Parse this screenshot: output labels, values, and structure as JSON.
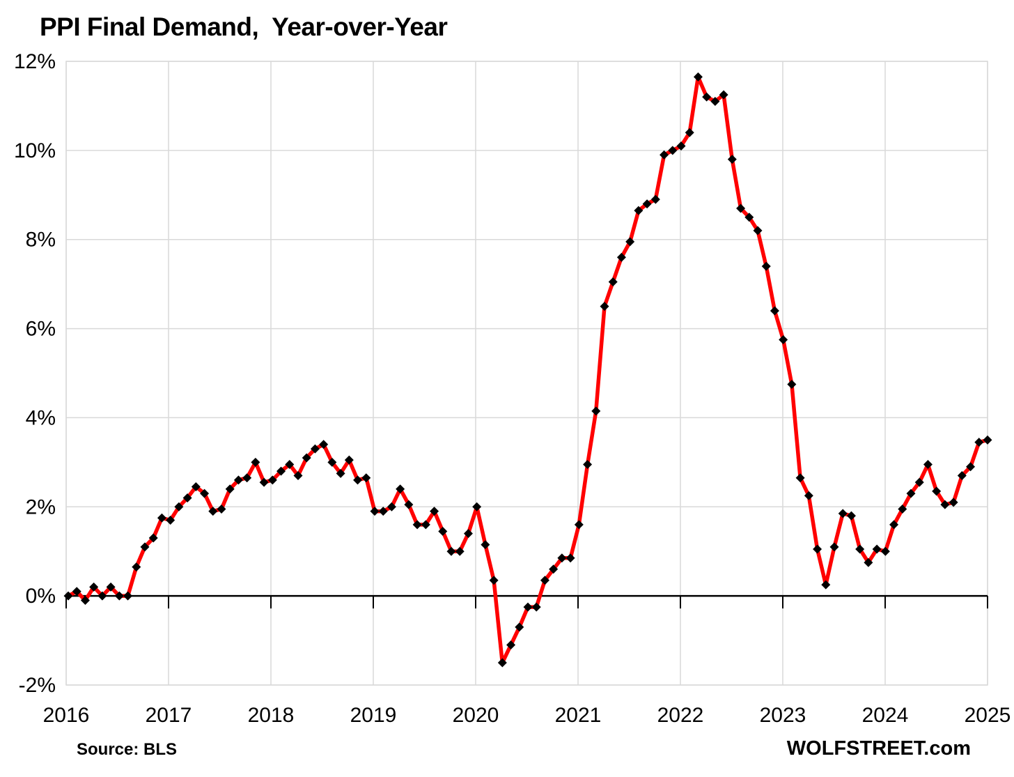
{
  "header": {
    "title": "PPI Final Demand,  Year-over-Year"
  },
  "footer": {
    "source": "Source: BLS",
    "brand": "WOLFSTREET.com"
  },
  "colors": {
    "line": "#ff0000",
    "marker": "#000000",
    "gridline": "#d9d9d9",
    "axis": "#000000",
    "text": "#000000",
    "background": "#ffffff"
  },
  "chart_data": {
    "type": "line",
    "title": "PPI Final Demand,  Year-over-Year",
    "xlabel": "",
    "ylabel": "",
    "x_frequency": "monthly",
    "x_start": "2016-01",
    "x_end": "2025-01",
    "x_tick_labels": [
      "2016",
      "2017",
      "2018",
      "2019",
      "2020",
      "2021",
      "2022",
      "2023",
      "2024",
      "2025"
    ],
    "y_ticks": [
      12,
      10,
      8,
      6,
      4,
      2,
      0,
      -2
    ],
    "y_tick_labels": [
      "12%",
      "10%",
      "8%",
      "6%",
      "4%",
      "2%",
      "0%",
      "-2%"
    ],
    "ylim": [
      -2,
      12
    ],
    "grid": true,
    "legend": "none",
    "zero_axis": true,
    "marker": "diamond",
    "series": [
      {
        "name": "PPI Final Demand, Year-over-Year % change",
        "color": "#ff0000",
        "marker_color": "#000000",
        "values": [
          0.0,
          0.1,
          -0.1,
          0.2,
          0.0,
          0.2,
          0.0,
          0.0,
          0.65,
          1.1,
          1.3,
          1.75,
          1.7,
          2.0,
          2.2,
          2.45,
          2.3,
          1.9,
          1.95,
          2.4,
          2.6,
          2.65,
          3.0,
          2.55,
          2.6,
          2.8,
          2.95,
          2.7,
          3.1,
          3.3,
          3.4,
          3.0,
          2.75,
          3.05,
          2.6,
          2.65,
          1.9,
          1.9,
          2.0,
          2.4,
          2.05,
          1.6,
          1.6,
          1.9,
          1.45,
          1.0,
          1.0,
          1.4,
          2.0,
          1.15,
          0.35,
          -1.5,
          -1.1,
          -0.7,
          -0.25,
          -0.25,
          0.35,
          0.6,
          0.85,
          0.85,
          1.6,
          2.95,
          4.15,
          6.5,
          7.05,
          7.6,
          7.95,
          8.65,
          8.8,
          8.9,
          9.9,
          10.0,
          10.1,
          10.4,
          11.65,
          11.2,
          11.1,
          11.25,
          9.8,
          8.7,
          8.5,
          8.2,
          7.4,
          6.4,
          5.75,
          4.75,
          2.65,
          2.25,
          1.05,
          0.25,
          1.1,
          1.85,
          1.8,
          1.05,
          0.75,
          1.05,
          1.0,
          1.6,
          1.95,
          2.3,
          2.55,
          2.95,
          2.35,
          2.05,
          2.1,
          2.7,
          2.9,
          3.45,
          3.5
        ]
      }
    ]
  }
}
